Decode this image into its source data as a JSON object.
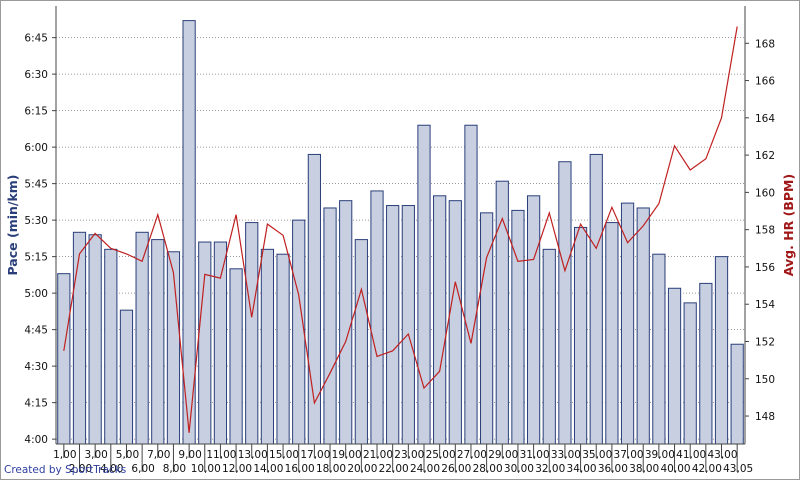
{
  "credit": "Created by SportTracks",
  "chart_data": {
    "type": "bar",
    "title": "",
    "ylabel": "Pace (min/km)",
    "y2label": "Avg. HR (BPM)",
    "xlabel": "",
    "categories": [
      "1,00",
      "2,00",
      "3,00",
      "4,00",
      "5,00",
      "6,00",
      "7,00",
      "8,00",
      "9,00",
      "10,00",
      "11,00",
      "12,00",
      "13,00",
      "14,00",
      "15,00",
      "16,00",
      "17,00",
      "18,00",
      "19,00",
      "20,00",
      "21,00",
      "22,00",
      "23,00",
      "24,00",
      "25,00",
      "26,00",
      "27,00",
      "28,00",
      "29,00",
      "30,00",
      "31,00",
      "32,00",
      "33,00",
      "34,00",
      "35,00",
      "36,00",
      "37,00",
      "38,00",
      "39,00",
      "40,00",
      "41,00",
      "42,00",
      "43,00",
      "43,05"
    ],
    "ylim_seconds": [
      238,
      418
    ],
    "y_ticks": [
      {
        "label": "4:00",
        "sec": 240
      },
      {
        "label": "4:15",
        "sec": 255
      },
      {
        "label": "4:30",
        "sec": 270
      },
      {
        "label": "4:45",
        "sec": 285
      },
      {
        "label": "5:00",
        "sec": 300
      },
      {
        "label": "5:15",
        "sec": 315
      },
      {
        "label": "5:30",
        "sec": 330
      },
      {
        "label": "5:45",
        "sec": 345
      },
      {
        "label": "6:00",
        "sec": 360
      },
      {
        "label": "6:15",
        "sec": 375
      },
      {
        "label": "6:30",
        "sec": 390
      },
      {
        "label": "6:45",
        "sec": 405
      }
    ],
    "y2lim": [
      146.5,
      170
    ],
    "y2_ticks": [
      148,
      150,
      152,
      154,
      156,
      158,
      160,
      162,
      164,
      166,
      168
    ],
    "series": [
      {
        "name": "Pace (min/km)",
        "kind": "bar",
        "color": "#c8cfe0",
        "edge": "#2a3f7a",
        "values_sec": [
          308,
          325,
          324,
          318,
          293,
          325,
          322,
          317,
          412,
          321,
          321,
          310,
          329,
          318,
          316,
          330,
          357,
          335,
          338,
          322,
          342,
          336,
          336,
          369,
          340,
          338,
          369,
          333,
          346,
          334,
          340,
          318,
          354,
          327,
          357,
          329,
          337,
          335,
          316,
          302,
          296,
          304,
          315,
          279
        ]
      },
      {
        "name": "Avg. HR (BPM)",
        "kind": "line",
        "color": "#c02020",
        "values": [
          151.5,
          156.7,
          157.8,
          157.0,
          156.7,
          156.3,
          158.8,
          155.7,
          147.1,
          155.6,
          155.4,
          158.8,
          153.3,
          158.3,
          157.7,
          154.5,
          148.7,
          150.3,
          152.0,
          154.8,
          151.2,
          151.5,
          152.4,
          149.5,
          150.4,
          155.2,
          151.9,
          156.5,
          158.6,
          156.3,
          156.4,
          158.9,
          155.8,
          158.3,
          157.0,
          159.2,
          157.3,
          158.2,
          159.4,
          162.5,
          161.2,
          161.8,
          164.0,
          168.9
        ]
      }
    ],
    "grid": true,
    "legend": "none"
  }
}
